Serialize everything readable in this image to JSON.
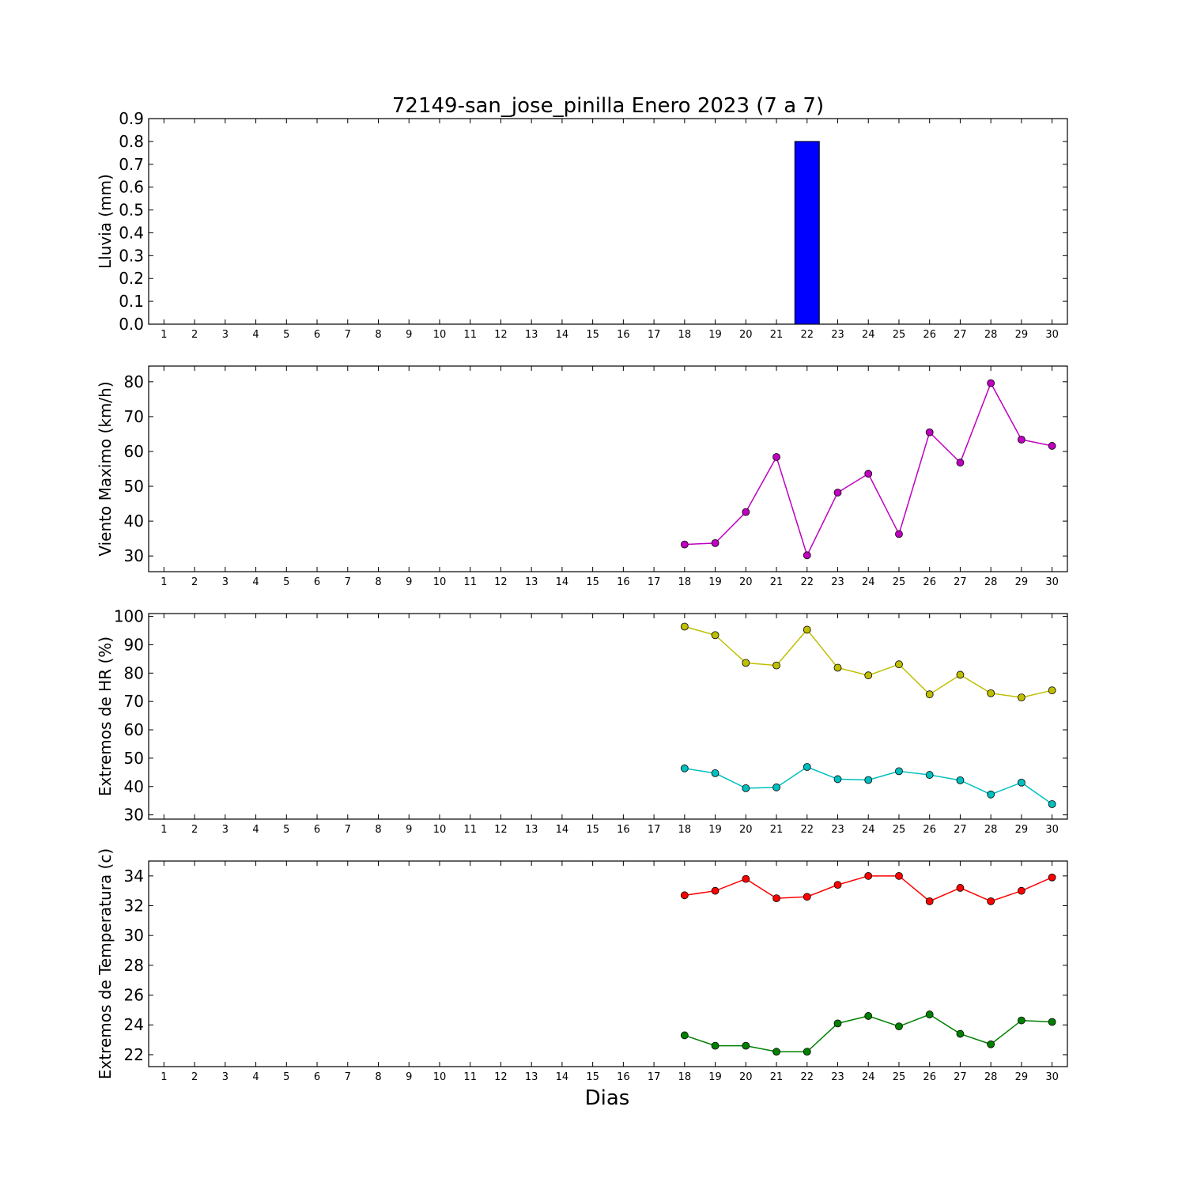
{
  "title": "72149-san_jose_pinilla Enero 2023  (7 a 7)",
  "xlabel": "Dias",
  "chart_data": [
    {
      "type": "bar",
      "ylabel": "Lluvia (mm)",
      "ylim": [
        0,
        0.9
      ],
      "yticks": [
        "0.0",
        "0.1",
        "0.2",
        "0.3",
        "0.4",
        "0.5",
        "0.6",
        "0.7",
        "0.8",
        "0.9"
      ],
      "categories": [
        "1",
        "2",
        "3",
        "4",
        "5",
        "6",
        "7",
        "8",
        "9",
        "10",
        "11",
        "12",
        "13",
        "14",
        "15",
        "16",
        "17",
        "18",
        "19",
        "20",
        "21",
        "22",
        "23",
        "24",
        "25",
        "26",
        "27",
        "28",
        "29",
        "30"
      ],
      "series": [
        {
          "color": "#0000ff",
          "x": [
            18,
            19,
            20,
            21,
            22,
            23,
            24,
            25,
            26,
            27,
            28,
            29,
            30
          ],
          "values": [
            0,
            0,
            0,
            0,
            0.8,
            0,
            0,
            0,
            0,
            0,
            0,
            0,
            0
          ]
        }
      ]
    },
    {
      "type": "line",
      "ylabel": "Viento Maximo (km/h)",
      "ylim": [
        25.5,
        84.5
      ],
      "yticks": [
        "30",
        "40",
        "50",
        "60",
        "70",
        "80"
      ],
      "categories": [
        "1",
        "2",
        "3",
        "4",
        "5",
        "6",
        "7",
        "8",
        "9",
        "10",
        "11",
        "12",
        "13",
        "14",
        "15",
        "16",
        "17",
        "18",
        "19",
        "20",
        "21",
        "22",
        "23",
        "24",
        "25",
        "26",
        "27",
        "28",
        "29",
        "30"
      ],
      "series": [
        {
          "color": "#bf00bf",
          "x": [
            18,
            19,
            20,
            21,
            22,
            23,
            24,
            25,
            26,
            27,
            28,
            29,
            30
          ],
          "values": [
            33.3,
            33.7,
            42.6,
            58.4,
            30.2,
            48.2,
            53.6,
            36.3,
            65.5,
            56.8,
            79.6,
            63.4,
            61.6
          ]
        }
      ]
    },
    {
      "type": "line",
      "ylabel": "Extremos de HR (%)",
      "ylim": [
        28.5,
        101
      ],
      "yticks": [
        "30",
        "40",
        "50",
        "60",
        "70",
        "80",
        "90",
        "100"
      ],
      "categories": [
        "1",
        "2",
        "3",
        "4",
        "5",
        "6",
        "7",
        "8",
        "9",
        "10",
        "11",
        "12",
        "13",
        "14",
        "15",
        "16",
        "17",
        "18",
        "19",
        "20",
        "21",
        "22",
        "23",
        "24",
        "25",
        "26",
        "27",
        "28",
        "29",
        "30"
      ],
      "series": [
        {
          "color": "#bfbf00",
          "x": [
            18,
            19,
            20,
            21,
            22,
            23,
            24,
            25,
            26,
            27,
            28,
            29,
            30
          ],
          "values": [
            96.4,
            93.4,
            83.6,
            82.7,
            95.3,
            81.9,
            79.2,
            83.1,
            72.5,
            79.4,
            72.9,
            71.4,
            73.9
          ]
        },
        {
          "color": "#00bfbf",
          "x": [
            18,
            19,
            20,
            21,
            22,
            23,
            24,
            25,
            26,
            27,
            28,
            29,
            30
          ],
          "values": [
            46.4,
            44.7,
            39.4,
            39.7,
            46.9,
            42.6,
            42.3,
            45.4,
            44.1,
            42.2,
            37.2,
            41.4,
            33.8
          ]
        }
      ]
    },
    {
      "type": "line",
      "ylabel": "Extremos de Temperatura (c)",
      "ylim": [
        21.2,
        35.0
      ],
      "yticks": [
        "22",
        "24",
        "26",
        "28",
        "30",
        "32",
        "34"
      ],
      "categories": [
        "1",
        "2",
        "3",
        "4",
        "5",
        "6",
        "7",
        "8",
        "9",
        "10",
        "11",
        "12",
        "13",
        "14",
        "15",
        "16",
        "17",
        "18",
        "19",
        "20",
        "21",
        "22",
        "23",
        "24",
        "25",
        "26",
        "27",
        "28",
        "29",
        "30"
      ],
      "series": [
        {
          "color": "#ff0000",
          "x": [
            18,
            19,
            20,
            21,
            22,
            23,
            24,
            25,
            26,
            27,
            28,
            29,
            30
          ],
          "values": [
            32.7,
            33.0,
            33.8,
            32.5,
            32.6,
            33.4,
            34.0,
            34.0,
            32.3,
            33.2,
            32.3,
            33.0,
            33.9
          ]
        },
        {
          "color": "#008000",
          "x": [
            18,
            19,
            20,
            21,
            22,
            23,
            24,
            25,
            26,
            27,
            28,
            29,
            30
          ],
          "values": [
            23.3,
            22.6,
            22.6,
            22.2,
            22.2,
            24.1,
            24.6,
            23.9,
            24.7,
            23.4,
            22.7,
            24.3,
            24.2
          ]
        }
      ]
    }
  ]
}
